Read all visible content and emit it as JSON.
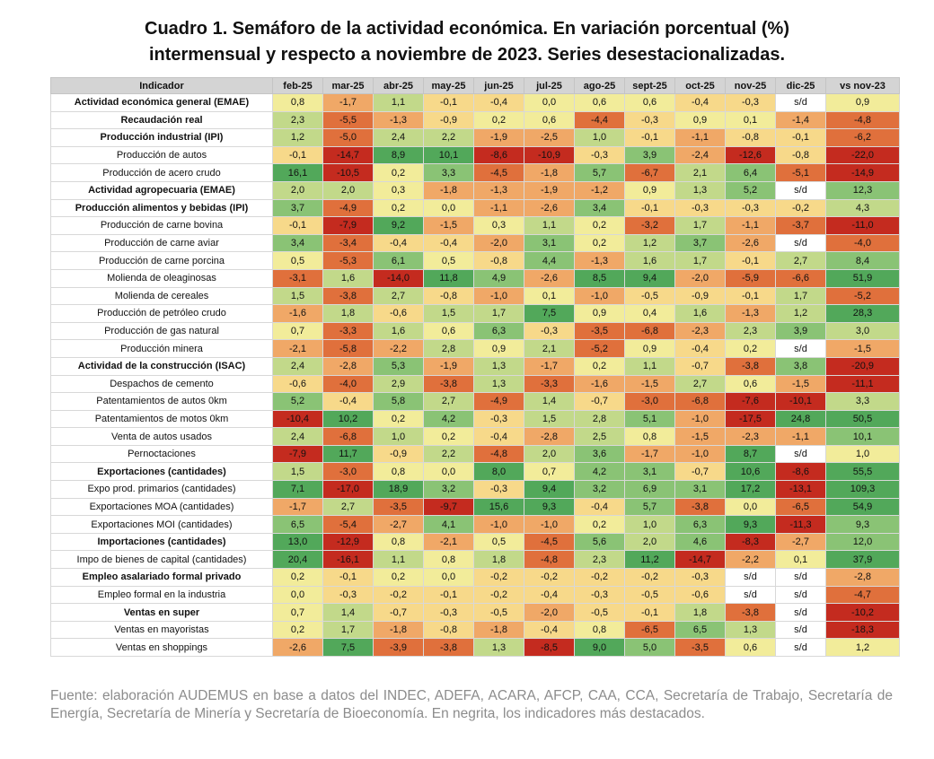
{
  "title": {
    "line1": "Cuadro 1. Semáforo de la actividad económica. En variación porcentual (%)",
    "line2": "intermensual y respecto a noviembre de 2023. Series desestacionalizadas."
  },
  "footer": "Fuente: elaboración AUDEMUS en base a datos del INDEC, ADEFA, ACARA, AFCP, CAA, CCA, Secretaría de Trabajo, Secretaría de Energía, Secretaría de Minería y Secretaría de Bioeconomía. En negrita, los indicadores más destacados.",
  "colors": {
    "dark_red": "#c42b1f",
    "red": "#e0703c",
    "orange": "#f0a867",
    "yellow": "#f7d98a",
    "light_yellow": "#f2ec9a",
    "light_green": "#c2d98a",
    "green": "#8ac375",
    "dark_green": "#52a85a",
    "none": "#ffffff"
  },
  "chart_data": {
    "type": "table",
    "title": "Cuadro 1. Semáforo de la actividad económica. En variación porcentual (%) intermensual y respecto a noviembre de 2023. Series desestacionalizadas.",
    "header_label": "Indicador",
    "columns": [
      "feb-25",
      "mar-25",
      "abr-25",
      "may-25",
      "jun-25",
      "jul-25",
      "ago-25",
      "sept-25",
      "oct-25",
      "nov-25",
      "dic-25",
      "vs nov-23"
    ],
    "rows": [
      {
        "label": "Actividad económica general (EMAE)",
        "bold": true,
        "values": [
          "0,8",
          "-1,7",
          "1,1",
          "-0,1",
          "-0,4",
          "0,0",
          "0,6",
          "0,6",
          "-0,4",
          "-0,3",
          "s/d",
          "0,9"
        ]
      },
      {
        "label": "Recaudación real",
        "bold": true,
        "values": [
          "2,3",
          "-5,5",
          "-1,3",
          "-0,9",
          "0,2",
          "0,6",
          "-4,4",
          "-0,3",
          "0,9",
          "0,1",
          "-1,4",
          "-4,8"
        ]
      },
      {
        "label": "Producción industrial (IPI)",
        "bold": true,
        "values": [
          "1,2",
          "-5,0",
          "2,4",
          "2,2",
          "-1,9",
          "-2,5",
          "1,0",
          "-0,1",
          "-1,1",
          "-0,8",
          "-0,1",
          "-6,2"
        ]
      },
      {
        "label": "Producción de autos",
        "bold": false,
        "values": [
          "-0,1",
          "-14,7",
          "8,9",
          "10,1",
          "-8,6",
          "-10,9",
          "-0,3",
          "3,9",
          "-2,4",
          "-12,6",
          "-0,8",
          "-22,0"
        ]
      },
      {
        "label": "Producción de acero crudo",
        "bold": false,
        "values": [
          "16,1",
          "-10,5",
          "0,2",
          "3,3",
          "-4,5",
          "-1,8",
          "5,7",
          "-6,7",
          "2,1",
          "6,4",
          "-5,1",
          "-14,9"
        ]
      },
      {
        "label": "Actividad agropecuaria (EMAE)",
        "bold": true,
        "values": [
          "2,0",
          "2,0",
          "0,3",
          "-1,8",
          "-1,3",
          "-1,9",
          "-1,2",
          "0,9",
          "1,3",
          "5,2",
          "s/d",
          "12,3"
        ]
      },
      {
        "label": "Producción alimentos y bebidas (IPI)",
        "bold": true,
        "values": [
          "3,7",
          "-4,9",
          "0,2",
          "0,0",
          "-1,1",
          "-2,6",
          "3,4",
          "-0,1",
          "-0,3",
          "-0,3",
          "-0,2",
          "4,3"
        ]
      },
      {
        "label": "Producción de carne bovina",
        "bold": false,
        "values": [
          "-0,1",
          "-7,9",
          "9,2",
          "-1,5",
          "0,3",
          "1,1",
          "0,2",
          "-3,2",
          "1,7",
          "-1,1",
          "-3,7",
          "-11,0"
        ]
      },
      {
        "label": "Producción de carne aviar",
        "bold": false,
        "values": [
          "3,4",
          "-3,4",
          "-0,4",
          "-0,4",
          "-2,0",
          "3,1",
          "0,2",
          "1,2",
          "3,7",
          "-2,6",
          "s/d",
          "-4,0"
        ]
      },
      {
        "label": "Producción de carne porcina",
        "bold": false,
        "values": [
          "0,5",
          "-5,3",
          "6,1",
          "0,5",
          "-0,8",
          "4,4",
          "-1,3",
          "1,6",
          "1,7",
          "-0,1",
          "2,7",
          "8,4"
        ]
      },
      {
        "label": "Molienda de oleaginosas",
        "bold": false,
        "values": [
          "-3,1",
          "1,6",
          "-14,0",
          "11,8",
          "4,9",
          "-2,6",
          "8,5",
          "9,4",
          "-2,0",
          "-5,9",
          "-6,6",
          "51,9"
        ]
      },
      {
        "label": "Molienda de cereales",
        "bold": false,
        "values": [
          "1,5",
          "-3,8",
          "2,7",
          "-0,8",
          "-1,0",
          "0,1",
          "-1,0",
          "-0,5",
          "-0,9",
          "-0,1",
          "1,7",
          "-5,2"
        ]
      },
      {
        "label": "Producción de petróleo crudo",
        "bold": false,
        "values": [
          "-1,6",
          "1,8",
          "-0,6",
          "1,5",
          "1,7",
          "7,5",
          "0,9",
          "0,4",
          "1,6",
          "-1,3",
          "1,2",
          "28,3"
        ]
      },
      {
        "label": "Producción de gas natural",
        "bold": false,
        "values": [
          "0,7",
          "-3,3",
          "1,6",
          "0,6",
          "6,3",
          "-0,3",
          "-3,5",
          "-6,8",
          "-2,3",
          "2,3",
          "3,9",
          "3,0"
        ]
      },
      {
        "label": "Producción minera",
        "bold": false,
        "values": [
          "-2,1",
          "-5,8",
          "-2,2",
          "2,8",
          "0,9",
          "2,1",
          "-5,2",
          "0,9",
          "-0,4",
          "0,2",
          "s/d",
          "-1,5"
        ]
      },
      {
        "label": "Actividad de la construcción (ISAC)",
        "bold": true,
        "values": [
          "2,4",
          "-2,8",
          "5,3",
          "-1,9",
          "1,3",
          "-1,7",
          "0,2",
          "1,1",
          "-0,7",
          "-3,8",
          "3,8",
          "-20,9"
        ]
      },
      {
        "label": "Despachos de cemento",
        "bold": false,
        "values": [
          "-0,6",
          "-4,0",
          "2,9",
          "-3,8",
          "1,3",
          "-3,3",
          "-1,6",
          "-1,5",
          "2,7",
          "0,6",
          "-1,5",
          "-11,1"
        ]
      },
      {
        "label": "Patentamientos de autos 0km",
        "bold": false,
        "values": [
          "5,2",
          "-0,4",
          "5,8",
          "2,7",
          "-4,9",
          "1,4",
          "-0,7",
          "-3,0",
          "-6,8",
          "-7,6",
          "-10,1",
          "3,3"
        ]
      },
      {
        "label": "Patentamientos de motos 0km",
        "bold": false,
        "values": [
          "-10,4",
          "10,2",
          "0,2",
          "4,2",
          "-0,3",
          "1,5",
          "2,8",
          "5,1",
          "-1,0",
          "-17,5",
          "24,8",
          "50,5"
        ]
      },
      {
        "label": "Venta de autos usados",
        "bold": false,
        "values": [
          "2,4",
          "-6,8",
          "1,0",
          "0,2",
          "-0,4",
          "-2,8",
          "2,5",
          "0,8",
          "-1,5",
          "-2,3",
          "-1,1",
          "10,1"
        ]
      },
      {
        "label": "Pernoctaciones",
        "bold": false,
        "values": [
          "-7,9",
          "11,7",
          "-0,9",
          "2,2",
          "-4,8",
          "2,0",
          "3,6",
          "-1,7",
          "-1,0",
          "8,7",
          "s/d",
          "1,0"
        ]
      },
      {
        "label": "Exportaciones (cantidades)",
        "bold": true,
        "values": [
          "1,5",
          "-3,0",
          "0,8",
          "0,0",
          "8,0",
          "0,7",
          "4,2",
          "3,1",
          "-0,7",
          "10,6",
          "-8,6",
          "55,5"
        ]
      },
      {
        "label": "Expo prod. primarios (cantidades)",
        "bold": false,
        "values": [
          "7,1",
          "-17,0",
          "18,9",
          "3,2",
          "-0,3",
          "9,4",
          "3,2",
          "6,9",
          "3,1",
          "17,2",
          "-13,1",
          "109,3"
        ]
      },
      {
        "label": "Exportaciones MOA (cantidades)",
        "bold": false,
        "values": [
          "-1,7",
          "2,7",
          "-3,5",
          "-9,7",
          "15,6",
          "9,3",
          "-0,4",
          "5,7",
          "-3,8",
          "0,0",
          "-6,5",
          "54,9"
        ]
      },
      {
        "label": "Exportaciones MOI (cantidades)",
        "bold": false,
        "values": [
          "6,5",
          "-5,4",
          "-2,7",
          "4,1",
          "-1,0",
          "-1,0",
          "0,2",
          "1,0",
          "6,3",
          "9,3",
          "-11,3",
          "9,3"
        ]
      },
      {
        "label": "Importaciones (cantidades)",
        "bold": true,
        "values": [
          "13,0",
          "-12,9",
          "0,8",
          "-2,1",
          "0,5",
          "-4,5",
          "5,6",
          "2,0",
          "4,6",
          "-8,3",
          "-2,7",
          "12,0"
        ]
      },
      {
        "label": "Impo de bienes de capital (cantidades)",
        "bold": false,
        "values": [
          "20,4",
          "-16,1",
          "1,1",
          "0,8",
          "1,8",
          "-4,8",
          "2,3",
          "11,2",
          "-14,7",
          "-2,2",
          "0,1",
          "37,9"
        ]
      },
      {
        "label": "Empleo asalariado formal privado",
        "bold": true,
        "values": [
          "0,2",
          "-0,1",
          "0,2",
          "0,0",
          "-0,2",
          "-0,2",
          "-0,2",
          "-0,2",
          "-0,3",
          "s/d",
          "s/d",
          "-2,8"
        ]
      },
      {
        "label": "Empleo formal en la industria",
        "bold": false,
        "values": [
          "0,0",
          "-0,3",
          "-0,2",
          "-0,1",
          "-0,2",
          "-0,4",
          "-0,3",
          "-0,5",
          "-0,6",
          "s/d",
          "s/d",
          "-4,7"
        ]
      },
      {
        "label": "Ventas en super",
        "bold": true,
        "values": [
          "0,7",
          "1,4",
          "-0,7",
          "-0,3",
          "-0,5",
          "-2,0",
          "-0,5",
          "-0,1",
          "1,8",
          "-3,8",
          "s/d",
          "-10,2"
        ]
      },
      {
        "label": "Ventas en mayoristas",
        "bold": false,
        "values": [
          "0,2",
          "1,7",
          "-1,8",
          "-0,8",
          "-1,8",
          "-0,4",
          "0,8",
          "-6,5",
          "6,5",
          "1,3",
          "s/d",
          "-18,3"
        ]
      },
      {
        "label": "Ventas en shoppings",
        "bold": false,
        "values": [
          "-2,6",
          "7,5",
          "-3,9",
          "-3,8",
          "1,3",
          "-8,5",
          "9,0",
          "5,0",
          "-3,5",
          "0,6",
          "s/d",
          "1,2"
        ]
      }
    ]
  }
}
